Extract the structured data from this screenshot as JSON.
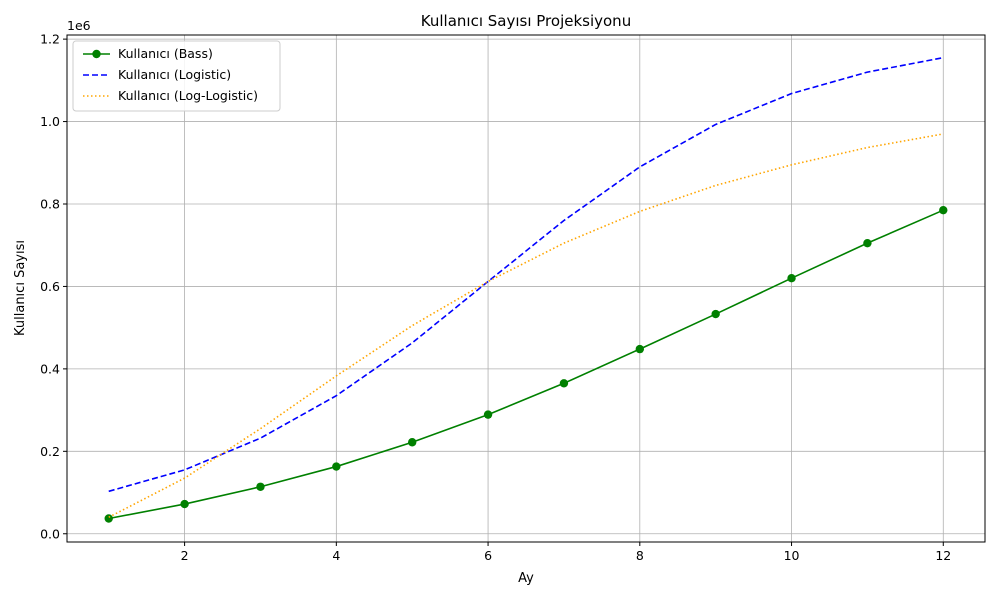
{
  "chart_data": {
    "type": "line",
    "title": "Kullanıcı Sayısı Projeksiyonu",
    "xlabel": "Ay",
    "ylabel": "Kullanıcı Sayısı",
    "y_offset_text": "1e6",
    "x": [
      1,
      2,
      3,
      4,
      5,
      6,
      7,
      8,
      9,
      10,
      11,
      12
    ],
    "xlim": [
      0.45,
      12.55
    ],
    "ylim": [
      -20000,
      1210000
    ],
    "x_ticks": [
      2,
      4,
      6,
      8,
      10,
      12
    ],
    "x_tick_labels": [
      "2",
      "4",
      "6",
      "8",
      "10",
      "12"
    ],
    "y_ticks": [
      0,
      200000,
      400000,
      600000,
      800000,
      1000000,
      1200000
    ],
    "y_tick_labels": [
      "0.0",
      "0.2",
      "0.4",
      "0.6",
      "0.8",
      "1.0",
      "1.2"
    ],
    "grid": true,
    "legend_position": "top-left",
    "series": [
      {
        "name": "Kullanıcı (Bass)",
        "color": "#008000",
        "style": "solid-with-markers",
        "values": [
          37000,
          72000,
          114000,
          163000,
          222000,
          289000,
          365000,
          448000,
          533000,
          620000,
          705000,
          785000
        ]
      },
      {
        "name": "Kullanıcı (Logistic)",
        "color": "#0000ff",
        "style": "dashed",
        "values": [
          103000,
          155000,
          232000,
          335000,
          463000,
          612000,
          760000,
          890000,
          993000,
          1068000,
          1120000,
          1155000
        ]
      },
      {
        "name": "Kullanıcı (Log-Logistic)",
        "color": "#ffa500",
        "style": "dotted",
        "values": [
          40000,
          135000,
          255000,
          383000,
          505000,
          612000,
          705000,
          782000,
          845000,
          895000,
          937000,
          970000
        ]
      }
    ]
  }
}
